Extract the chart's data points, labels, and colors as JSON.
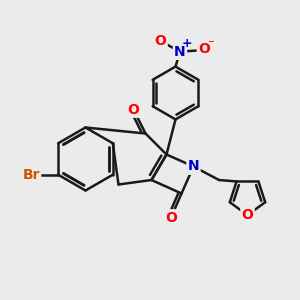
{
  "background_color": "#ebebeb",
  "bond_color": "#1a1a1a",
  "bond_width": 1.8,
  "atom_colors": {
    "O": "#ff0000",
    "N": "#0000cc",
    "Br": "#cc5500",
    "C": "#1a1a1a"
  },
  "font_size": 10
}
